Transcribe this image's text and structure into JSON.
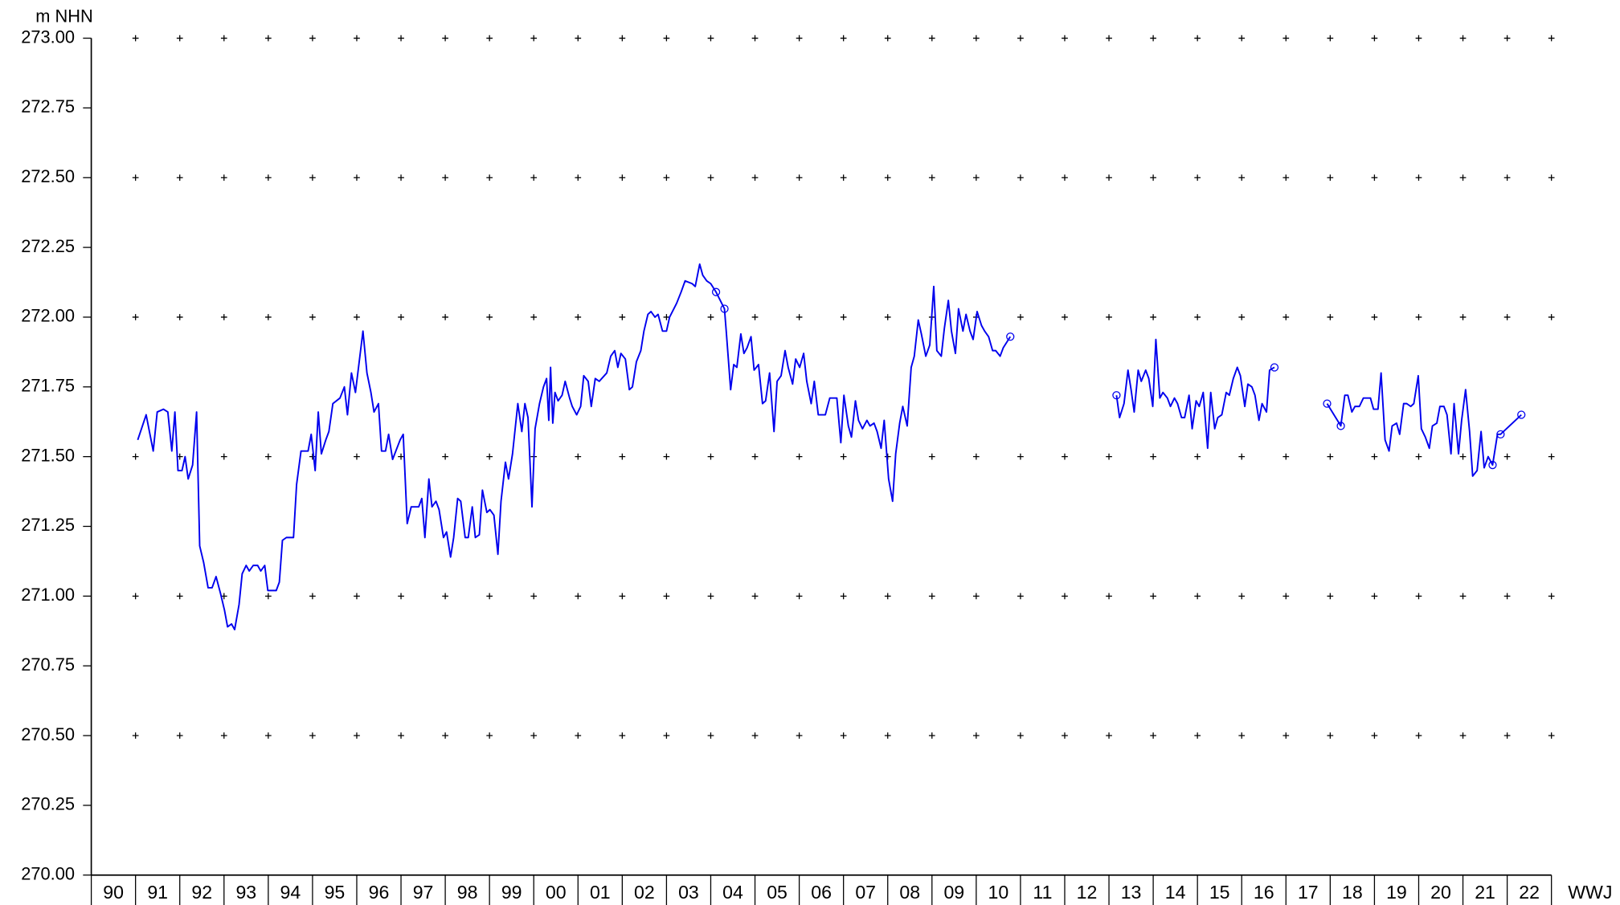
{
  "chart_data": {
    "type": "line",
    "y_label": "m NHN",
    "x_label": "WWJ",
    "categories": [
      "90",
      "91",
      "92",
      "93",
      "94",
      "95",
      "96",
      "97",
      "98",
      "99",
      "00",
      "01",
      "02",
      "03",
      "04",
      "05",
      "06",
      "07",
      "08",
      "09",
      "10",
      "11",
      "12",
      "13",
      "14",
      "15",
      "16",
      "17",
      "18",
      "19",
      "20",
      "21",
      "22"
    ],
    "xlim": [
      0,
      33
    ],
    "xticks": [
      0,
      1,
      2,
      3,
      4,
      5,
      6,
      7,
      8,
      9,
      10,
      11,
      12,
      13,
      14,
      15,
      16,
      17,
      18,
      19,
      20,
      21,
      22,
      23,
      24,
      25,
      26,
      27,
      28,
      29,
      30,
      31,
      32,
      33
    ],
    "ylim": [
      270,
      273
    ],
    "yticks": [
      {
        "value": 270,
        "label": "270.00"
      },
      {
        "value": 270.25,
        "label": "270.25"
      },
      {
        "value": 270.5,
        "label": "270.50"
      },
      {
        "value": 270.75,
        "label": "270.75"
      },
      {
        "value": 271,
        "label": "271.00"
      },
      {
        "value": 271.25,
        "label": "271.25"
      },
      {
        "value": 271.5,
        "label": "271.50"
      },
      {
        "value": 271.75,
        "label": "271.75"
      },
      {
        "value": 272,
        "label": "272.00"
      },
      {
        "value": 272.25,
        "label": "272.25"
      },
      {
        "value": 272.5,
        "label": "272.50"
      },
      {
        "value": 272.75,
        "label": "272.75"
      },
      {
        "value": 273,
        "label": "273.00"
      }
    ],
    "grid": true,
    "series": [
      {
        "color": "#0000ee",
        "style": "line",
        "x": [
          1.05,
          1.24,
          1.4,
          1.49,
          1.63,
          1.73,
          1.82,
          1.89,
          1.96,
          2.05,
          2.12,
          2.19,
          2.29,
          2.38,
          2.45,
          2.54,
          2.64,
          2.73,
          2.82,
          2.92,
          3.01,
          3.08,
          3.17,
          3.24,
          3.34,
          3.41,
          3.5,
          3.57,
          3.66,
          3.76,
          3.83,
          3.92,
          3.99,
          4.18,
          4.25,
          4.32,
          4.41,
          4.57,
          4.64,
          4.74,
          4.9,
          4.97,
          5.06,
          5.13,
          5.2,
          5.3,
          5.37,
          5.46,
          5.62,
          5.72,
          5.79,
          5.88,
          5.97,
          6.14,
          6.23,
          6.32,
          6.39,
          6.49,
          6.56,
          6.65,
          6.72,
          6.81,
          6.98,
          7.05,
          7.14,
          7.23,
          7.4,
          7.47,
          7.54,
          7.63,
          7.7,
          7.79,
          7.86,
          7.96,
          8.03,
          8.12,
          8.19,
          8.28,
          8.35,
          8.45,
          8.52,
          8.61,
          8.68,
          8.77,
          8.84,
          8.94,
          9.01,
          9.1,
          9.19,
          9.26,
          9.36,
          9.43,
          9.52,
          9.64,
          9.73,
          9.8,
          9.87,
          9.96,
          10.03,
          10.13,
          10.22,
          10.29,
          10.34,
          10.38,
          10.43,
          10.48,
          10.55,
          10.64,
          10.71,
          10.81,
          10.87,
          10.97,
          11.06,
          11.13,
          11.23,
          11.3,
          11.39,
          11.48,
          11.65,
          11.74,
          11.83,
          11.9,
          11.97,
          12.07,
          12.16,
          12.23,
          12.32,
          12.42,
          12.49,
          12.58,
          12.65,
          12.74,
          12.81,
          12.91,
          13.0,
          13.07,
          13.23,
          13.33,
          13.42,
          13.58,
          13.65,
          13.75,
          13.82,
          13.91,
          14.0,
          14.12,
          14.31,
          14.35,
          14.45,
          14.52,
          14.59,
          14.68,
          14.75,
          14.82,
          14.91,
          14.98,
          15.08,
          15.17,
          15.24,
          15.33,
          15.43,
          15.5,
          15.59,
          15.68,
          15.75,
          15.85,
          15.92,
          16.01,
          16.1,
          16.17,
          16.27,
          16.34,
          16.43,
          16.59,
          16.69,
          16.85,
          16.94,
          17.01,
          17.11,
          17.18,
          17.27,
          17.34,
          17.43,
          17.53,
          17.6,
          17.69,
          17.76,
          17.85,
          17.92,
          18.02,
          18.11,
          18.18,
          18.27,
          18.34,
          18.44,
          18.53,
          18.6,
          18.69,
          18.76,
          18.86,
          18.95,
          19.04,
          19.11,
          19.21,
          19.28,
          19.37,
          19.44,
          19.53,
          19.6,
          19.7,
          19.77,
          19.86,
          19.93,
          20.02,
          20.12,
          20.19,
          20.28,
          20.37,
          20.44,
          20.54,
          20.61,
          20.77,
          null,
          23.17,
          23.24,
          23.34,
          23.43,
          23.5,
          23.57,
          23.66,
          23.73,
          23.83,
          23.9,
          23.99,
          24.06,
          24.15,
          24.22,
          24.32,
          24.39,
          24.48,
          24.55,
          24.64,
          24.71,
          24.81,
          24.88,
          24.97,
          25.04,
          25.13,
          25.23,
          25.3,
          25.39,
          25.46,
          25.55,
          25.65,
          25.72,
          25.81,
          25.9,
          25.97,
          26.07,
          26.14,
          26.23,
          26.3,
          26.39,
          26.46,
          26.56,
          26.63,
          26.74,
          null,
          27.93,
          28.24,
          28.33,
          28.4,
          28.49,
          28.56,
          28.66,
          28.75,
          28.91,
          28.98,
          29.08,
          29.15,
          29.24,
          29.33,
          29.4,
          29.5,
          29.57,
          29.66,
          29.73,
          29.82,
          29.89,
          29.99,
          30.06,
          30.15,
          30.24,
          30.31,
          30.41,
          30.48,
          30.57,
          30.64,
          30.73,
          30.8,
          30.9,
          30.97,
          31.06,
          31.15,
          31.22,
          31.32,
          31.41,
          31.48,
          31.57,
          31.67,
          31.78,
          31.85,
          32.32
        ],
        "values": [
          271.56,
          271.65,
          271.52,
          271.66,
          271.67,
          271.66,
          271.52,
          271.66,
          271.45,
          271.45,
          271.5,
          271.42,
          271.47,
          271.66,
          271.18,
          271.12,
          271.03,
          271.03,
          271.07,
          271.01,
          270.95,
          270.89,
          270.9,
          270.88,
          270.97,
          271.08,
          271.11,
          271.09,
          271.11,
          271.11,
          271.09,
          271.11,
          271.02,
          271.02,
          271.05,
          271.2,
          271.21,
          271.21,
          271.4,
          271.52,
          271.52,
          271.58,
          271.45,
          271.66,
          271.51,
          271.56,
          271.59,
          271.69,
          271.71,
          271.75,
          271.65,
          271.8,
          271.73,
          271.95,
          271.8,
          271.73,
          271.66,
          271.69,
          271.52,
          271.52,
          271.58,
          271.49,
          271.56,
          271.58,
          271.26,
          271.32,
          271.32,
          271.35,
          271.21,
          271.42,
          271.32,
          271.34,
          271.31,
          271.21,
          271.23,
          271.14,
          271.21,
          271.35,
          271.34,
          271.21,
          271.21,
          271.32,
          271.21,
          271.22,
          271.38,
          271.3,
          271.31,
          271.29,
          271.15,
          271.34,
          271.48,
          271.42,
          271.51,
          271.69,
          271.59,
          271.69,
          271.64,
          271.32,
          271.6,
          271.69,
          271.75,
          271.78,
          271.63,
          271.82,
          271.62,
          271.73,
          271.7,
          271.72,
          271.77,
          271.71,
          271.68,
          271.65,
          271.68,
          271.79,
          271.77,
          271.68,
          271.78,
          271.77,
          271.8,
          271.86,
          271.88,
          271.82,
          271.87,
          271.85,
          271.74,
          271.75,
          271.84,
          271.88,
          271.95,
          272.01,
          272.02,
          272.0,
          272.01,
          271.95,
          271.95,
          272.0,
          272.05,
          272.09,
          272.13,
          272.12,
          272.11,
          272.19,
          272.15,
          272.13,
          272.12,
          272.09,
          272.03,
          271.95,
          271.74,
          271.83,
          271.82,
          271.94,
          271.87,
          271.89,
          271.93,
          271.81,
          271.83,
          271.69,
          271.7,
          271.8,
          271.59,
          271.77,
          271.79,
          271.88,
          271.82,
          271.76,
          271.85,
          271.82,
          271.87,
          271.77,
          271.69,
          271.77,
          271.65,
          271.65,
          271.71,
          271.71,
          271.55,
          271.72,
          271.61,
          271.57,
          271.7,
          271.63,
          271.6,
          271.63,
          271.61,
          271.62,
          271.59,
          271.53,
          271.63,
          271.42,
          271.34,
          271.51,
          271.62,
          271.68,
          271.61,
          271.82,
          271.86,
          271.99,
          271.94,
          271.86,
          271.9,
          272.11,
          271.88,
          271.86,
          271.96,
          272.06,
          271.95,
          271.87,
          272.03,
          271.95,
          272.01,
          271.95,
          271.92,
          272.02,
          271.97,
          271.95,
          271.93,
          271.88,
          271.88,
          271.86,
          271.89,
          271.93,
          null,
          271.72,
          271.64,
          271.69,
          271.81,
          271.74,
          271.66,
          271.81,
          271.77,
          271.81,
          271.78,
          271.68,
          271.92,
          271.71,
          271.73,
          271.71,
          271.68,
          271.71,
          271.69,
          271.64,
          271.64,
          271.72,
          271.6,
          271.7,
          271.68,
          271.73,
          271.53,
          271.73,
          271.6,
          271.64,
          271.65,
          271.73,
          271.72,
          271.78,
          271.82,
          271.79,
          271.68,
          271.76,
          271.75,
          271.72,
          271.63,
          271.69,
          271.66,
          271.81,
          271.82,
          null,
          271.69,
          271.61,
          271.72,
          271.72,
          271.66,
          271.68,
          271.68,
          271.71,
          271.71,
          271.67,
          271.67,
          271.8,
          271.56,
          271.52,
          271.61,
          271.62,
          271.58,
          271.69,
          271.69,
          271.68,
          271.69,
          271.79,
          271.6,
          271.57,
          271.53,
          271.61,
          271.62,
          271.68,
          271.68,
          271.65,
          271.51,
          271.69,
          271.51,
          271.63,
          271.74,
          271.59,
          271.43,
          271.45,
          271.59,
          271.46,
          271.5,
          271.47,
          271.58,
          271.58,
          271.65
        ]
      },
      {
        "color": "#0000ee",
        "style": "marker",
        "x": [
          14.12,
          14.31,
          20.77,
          23.17,
          26.74,
          27.93,
          28.24,
          31.67,
          31.85,
          32.32
        ],
        "values": [
          272.09,
          272.03,
          271.93,
          271.72,
          271.82,
          271.69,
          271.61,
          271.47,
          271.58,
          271.65
        ]
      }
    ]
  }
}
